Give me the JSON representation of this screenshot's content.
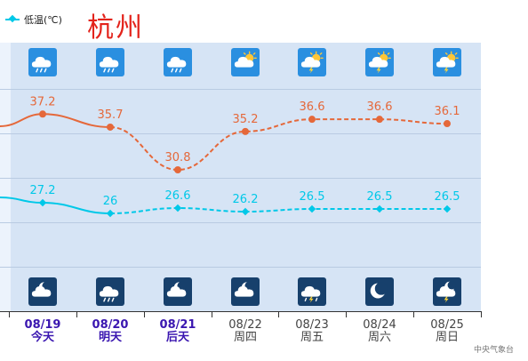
{
  "legend": {
    "low_label": "低温(℃)",
    "icon": "cyan-line-diamond-marker"
  },
  "city": "杭州",
  "credit": "中央气象台",
  "colors": {
    "high": "#e5683a",
    "low": "#00c8e8",
    "panel": "#d6e4f5",
    "city": "#e3231b",
    "near_days": "#3a16b0"
  },
  "days": [
    {
      "date": "08/19",
      "weekday": "今天",
      "day_icon": "cloud-rain-icon",
      "night_icon": "moon-cloud-icon"
    },
    {
      "date": "08/20",
      "weekday": "明天",
      "day_icon": "cloud-rain-icon",
      "night_icon": "cloud-rain-icon"
    },
    {
      "date": "08/21",
      "weekday": "后天",
      "day_icon": "cloud-rain-icon",
      "night_icon": "moon-cloud-icon"
    },
    {
      "date": "08/22",
      "weekday": "周四",
      "day_icon": "sun-cloud-icon",
      "night_icon": "moon-cloud-icon"
    },
    {
      "date": "08/23",
      "weekday": "周五",
      "day_icon": "sun-thunderstorm-icon",
      "night_icon": "thunderstorm-icon"
    },
    {
      "date": "08/24",
      "weekday": "周六",
      "day_icon": "sun-thunderstorm-icon",
      "night_icon": "moon-icon"
    },
    {
      "date": "08/25",
      "weekday": "周日",
      "day_icon": "sun-thunderstorm-icon",
      "night_icon": "moon-thunderstorm-icon"
    }
  ],
  "chart_data": {
    "type": "line",
    "categories": [
      "08/19",
      "08/20",
      "08/21",
      "08/22",
      "08/23",
      "08/24",
      "08/25"
    ],
    "series": [
      {
        "name": "",
        "values": [
          37.2,
          35.7,
          30.8,
          35.2,
          36.6,
          36.6,
          36.1
        ],
        "color": "#e5683a",
        "labels": [
          "37.2",
          "35.7",
          "30.8",
          "35.2",
          "36.6",
          "36.6",
          "36.1"
        ]
      },
      {
        "name": "低温(℃)",
        "values": [
          27.2,
          26,
          26.6,
          26.2,
          26.5,
          26.5,
          26.5
        ],
        "color": "#00c8e8",
        "labels": [
          "27.2",
          "26",
          "26.6",
          "26.2",
          "26.5",
          "26.5",
          "26.5"
        ]
      }
    ],
    "solid_through_index": 1,
    "grid": true,
    "legend_position": "top-left"
  }
}
